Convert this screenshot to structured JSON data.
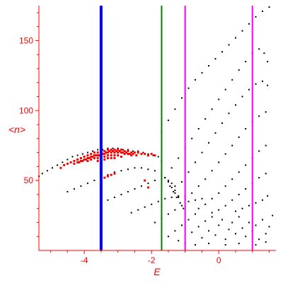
{
  "chart_data": {
    "type": "scatter",
    "title": "",
    "xlabel": "E",
    "ylabel": "<n>",
    "xlim": [
      -5.35,
      1.7
    ],
    "ylim": [
      0,
      175
    ],
    "x_ticks": [
      -4,
      -2,
      0
    ],
    "y_ticks": [
      50,
      100,
      150
    ],
    "grid": false,
    "axis_color": "#ff0000",
    "vertical_lines": [
      {
        "x": -3.5,
        "color": "#0000ff"
      },
      {
        "x": -1.7,
        "color": "#008000"
      },
      {
        "x": -1.0,
        "color": "#ff00ff"
      },
      {
        "x": 1.0,
        "color": "#ff00ff"
      }
    ],
    "series": [
      {
        "color": "#000000",
        "points": [
          [
            -5.35,
            53
          ],
          [
            -5.25,
            55
          ],
          [
            -5.1,
            57
          ],
          [
            -4.95,
            59
          ],
          [
            -4.8,
            61
          ],
          [
            -4.65,
            63
          ],
          [
            -4.5,
            65
          ],
          [
            -4.35,
            67
          ],
          [
            -4.2,
            68
          ],
          [
            -4.05,
            69
          ],
          [
            -3.9,
            70
          ],
          [
            -3.75,
            71
          ],
          [
            -3.6,
            72
          ],
          [
            -3.45,
            72
          ],
          [
            -3.3,
            73
          ],
          [
            -3.15,
            73
          ],
          [
            -3,
            73
          ],
          [
            -2.85,
            72
          ],
          [
            -2.7,
            72
          ],
          [
            -2.55,
            71
          ],
          [
            -2.4,
            71
          ],
          [
            -2.25,
            70
          ],
          [
            -2.1,
            69
          ],
          [
            -1.95,
            68
          ],
          [
            -1.8,
            67
          ],
          [
            -1.7,
            64
          ],
          [
            -4.5,
            42
          ],
          [
            -4.3,
            44
          ],
          [
            -4.1,
            46
          ],
          [
            -3.9,
            48
          ],
          [
            -3.7,
            50
          ],
          [
            -3.5,
            52
          ],
          [
            -3.3,
            54
          ],
          [
            -3.1,
            56
          ],
          [
            -2.9,
            57
          ],
          [
            -2.7,
            58
          ],
          [
            -2.5,
            59
          ],
          [
            -2.3,
            59
          ],
          [
            -2.1,
            58
          ],
          [
            -1.9,
            57
          ],
          [
            -1.7,
            55
          ],
          [
            -1.6,
            52
          ],
          [
            -1.5,
            49
          ],
          [
            -1.4,
            45
          ],
          [
            -1.3,
            41
          ],
          [
            -1.2,
            38
          ],
          [
            -3.5,
            34
          ],
          [
            -3.3,
            36
          ],
          [
            -3.1,
            38
          ],
          [
            -2.9,
            40
          ],
          [
            -2.7,
            42
          ],
          [
            -2.5,
            44
          ],
          [
            -2.3,
            46
          ],
          [
            -2.1,
            48
          ],
          [
            -1.9,
            50
          ],
          [
            -1.7,
            51
          ],
          [
            -1.5,
            50
          ],
          [
            -1.4,
            48
          ],
          [
            -1.3,
            46
          ],
          [
            -2.6,
            27
          ],
          [
            -2.4,
            29
          ],
          [
            -2.2,
            31
          ],
          [
            -2,
            33
          ],
          [
            -1.8,
            35
          ],
          [
            -1.6,
            37
          ],
          [
            -1.4,
            38
          ],
          [
            -1.2,
            39
          ],
          [
            -1,
            39
          ],
          [
            -1.9,
            20
          ],
          [
            -1.7,
            23
          ],
          [
            -1.5,
            26
          ],
          [
            -1.3,
            29
          ],
          [
            -1.1,
            32
          ],
          [
            -0.9,
            35
          ],
          [
            -0.7,
            36
          ],
          [
            -0.5,
            37
          ],
          [
            -1.7,
            85
          ],
          [
            -1.5,
            93
          ],
          [
            -1.3,
            101
          ],
          [
            -1.1,
            109
          ],
          [
            -0.9,
            116
          ],
          [
            -0.7,
            122
          ],
          [
            -0.5,
            127
          ],
          [
            -0.3,
            132
          ],
          [
            -0.1,
            137
          ],
          [
            0.1,
            142
          ],
          [
            0.3,
            147
          ],
          [
            0.5,
            152
          ],
          [
            0.7,
            157
          ],
          [
            0.9,
            162
          ],
          [
            1.1,
            167
          ],
          [
            1.3,
            171
          ],
          [
            1.5,
            174
          ],
          [
            -1.6,
            52
          ],
          [
            -1.4,
            59
          ],
          [
            -1.2,
            66
          ],
          [
            -1,
            73
          ],
          [
            -0.8,
            80
          ],
          [
            -0.6,
            87
          ],
          [
            -0.4,
            94
          ],
          [
            -0.2,
            101
          ],
          [
            0,
            108
          ],
          [
            0.2,
            115
          ],
          [
            0.4,
            122
          ],
          [
            0.6,
            129
          ],
          [
            0.8,
            135
          ],
          [
            1,
            141
          ],
          [
            1.2,
            144
          ],
          [
            1.35,
            141
          ],
          [
            1.45,
            135
          ],
          [
            -1.3,
            43
          ],
          [
            -1.1,
            49
          ],
          [
            -0.9,
            56
          ],
          [
            -0.7,
            63
          ],
          [
            -0.5,
            70
          ],
          [
            -0.3,
            77
          ],
          [
            -0.1,
            84
          ],
          [
            0.1,
            91
          ],
          [
            0.3,
            98
          ],
          [
            0.5,
            104
          ],
          [
            0.7,
            110
          ],
          [
            0.9,
            115
          ],
          [
            1.1,
            119
          ],
          [
            1.3,
            121
          ],
          [
            1.45,
            118
          ],
          [
            -1,
            37
          ],
          [
            -0.8,
            41
          ],
          [
            -0.6,
            46
          ],
          [
            -0.4,
            51
          ],
          [
            -0.2,
            57
          ],
          [
            0,
            63
          ],
          [
            0.2,
            69
          ],
          [
            0.4,
            75
          ],
          [
            0.6,
            81
          ],
          [
            0.8,
            87
          ],
          [
            1,
            92
          ],
          [
            1.2,
            96
          ],
          [
            1.4,
            99
          ],
          [
            -0.6,
            30
          ],
          [
            -0.4,
            33
          ],
          [
            -0.2,
            37
          ],
          [
            0,
            41
          ],
          [
            0.2,
            46
          ],
          [
            0.4,
            51
          ],
          [
            0.6,
            56
          ],
          [
            0.8,
            61
          ],
          [
            1,
            66
          ],
          [
            1.2,
            71
          ],
          [
            1.4,
            75
          ],
          [
            -0.2,
            27
          ],
          [
            0,
            29
          ],
          [
            0.2,
            32
          ],
          [
            0.4,
            36
          ],
          [
            0.6,
            40
          ],
          [
            0.8,
            44
          ],
          [
            1,
            48
          ],
          [
            1.2,
            52
          ],
          [
            1.4,
            55
          ],
          [
            0.5,
            28
          ],
          [
            0.7,
            30
          ],
          [
            0.9,
            32
          ],
          [
            1.1,
            34
          ],
          [
            1.3,
            36
          ],
          [
            1.45,
            39
          ],
          [
            -1.5,
            10
          ],
          [
            -1.3,
            14
          ],
          [
            -1.1,
            18
          ],
          [
            -0.9,
            22
          ],
          [
            -0.8,
            13
          ],
          [
            -0.7,
            26
          ],
          [
            -0.6,
            17
          ],
          [
            -0.5,
            9
          ],
          [
            -0.4,
            21
          ],
          [
            -0.3,
            14
          ],
          [
            -0.2,
            24
          ],
          [
            -0.1,
            11
          ],
          [
            0,
            18
          ],
          [
            0.1,
            22
          ],
          [
            0.2,
            8
          ],
          [
            0.3,
            15
          ],
          [
            0.4,
            20
          ],
          [
            0.5,
            12
          ],
          [
            0.6,
            24
          ],
          [
            0.7,
            16
          ],
          [
            0.8,
            10
          ],
          [
            0.9,
            20
          ],
          [
            1,
            14
          ],
          [
            1.1,
            18
          ],
          [
            1.2,
            8
          ],
          [
            1.3,
            22
          ],
          [
            1.4,
            12
          ],
          [
            1.5,
            17
          ],
          [
            1.6,
            25
          ],
          [
            -1.2,
            7
          ],
          [
            -1,
            5
          ],
          [
            -0.7,
            4
          ],
          [
            -0.3,
            5
          ],
          [
            0.2,
            4
          ],
          [
            0.6,
            5
          ],
          [
            1.1,
            4
          ],
          [
            1.4,
            6
          ],
          [
            -1.45,
            46
          ],
          [
            -1.35,
            42
          ],
          [
            -1.25,
            38
          ],
          [
            -1.15,
            34
          ],
          [
            -1.05,
            30
          ]
        ]
      },
      {
        "color": "#ff0000",
        "points": [
          [
            -4.7,
            59
          ],
          [
            -4.6,
            61
          ],
          [
            -4.5,
            62
          ],
          [
            -4.4,
            63
          ],
          [
            -4.3,
            64
          ],
          [
            -4.2,
            65
          ],
          [
            -4.1,
            66
          ],
          [
            -4,
            67
          ],
          [
            -3.9,
            68
          ],
          [
            -3.8,
            69
          ],
          [
            -3.7,
            70
          ],
          [
            -3.6,
            70
          ],
          [
            -3.5,
            71
          ],
          [
            -3.4,
            71
          ],
          [
            -3.3,
            72
          ],
          [
            -3.2,
            72
          ],
          [
            -3.1,
            72
          ],
          [
            -3,
            72
          ],
          [
            -2.9,
            72
          ],
          [
            -2.8,
            71
          ],
          [
            -2.7,
            71
          ],
          [
            -2.6,
            70
          ],
          [
            -2.5,
            70
          ],
          [
            -2.4,
            70
          ],
          [
            -2.3,
            69
          ],
          [
            -2.2,
            69
          ],
          [
            -2.1,
            68
          ],
          [
            -2,
            69
          ],
          [
            -1.9,
            68
          ],
          [
            -4.2,
            63
          ],
          [
            -4.1,
            64
          ],
          [
            -4,
            65
          ],
          [
            -3.9,
            66
          ],
          [
            -3.8,
            67
          ],
          [
            -3.7,
            68
          ],
          [
            -3.6,
            68
          ],
          [
            -3.5,
            69
          ],
          [
            -3.4,
            69
          ],
          [
            -3.3,
            70
          ],
          [
            -3.2,
            70
          ],
          [
            -3.1,
            70
          ],
          [
            -3,
            70
          ],
          [
            -2.9,
            70
          ],
          [
            -2.8,
            69
          ],
          [
            -2.7,
            69
          ],
          [
            -2.6,
            68
          ],
          [
            -3.9,
            64
          ],
          [
            -3.8,
            65
          ],
          [
            -3.7,
            66
          ],
          [
            -3.6,
            66
          ],
          [
            -3.5,
            67
          ],
          [
            -3.4,
            67
          ],
          [
            -3.3,
            68
          ],
          [
            -3.2,
            68
          ],
          [
            -3.1,
            68
          ],
          [
            -3,
            68
          ],
          [
            -2.9,
            67
          ],
          [
            -3.6,
            64
          ],
          [
            -3.5,
            65
          ],
          [
            -3.4,
            65
          ],
          [
            -3.3,
            66
          ],
          [
            -3.2,
            66
          ],
          [
            -3.1,
            66
          ],
          [
            -4.3,
            62
          ],
          [
            -4.15,
            63
          ],
          [
            -4.05,
            64
          ],
          [
            -3.95,
            65
          ],
          [
            -3.85,
            66
          ],
          [
            -3.75,
            67
          ],
          [
            -3.65,
            68
          ],
          [
            -3.55,
            68
          ],
          [
            -3.45,
            69
          ],
          [
            -3.35,
            70
          ],
          [
            -3.25,
            71
          ],
          [
            -3.15,
            71
          ],
          [
            -3.05,
            71
          ],
          [
            -2.95,
            71
          ],
          [
            -2.85,
            70
          ],
          [
            -2.75,
            70
          ],
          [
            -2.65,
            69
          ],
          [
            -2.55,
            69
          ],
          [
            -2.45,
            68
          ],
          [
            -3.4,
            52
          ],
          [
            -3.3,
            53
          ],
          [
            -3.2,
            54
          ],
          [
            -3.1,
            55
          ],
          [
            -2.2,
            50
          ],
          [
            -2.1,
            45
          ]
        ]
      }
    ]
  }
}
